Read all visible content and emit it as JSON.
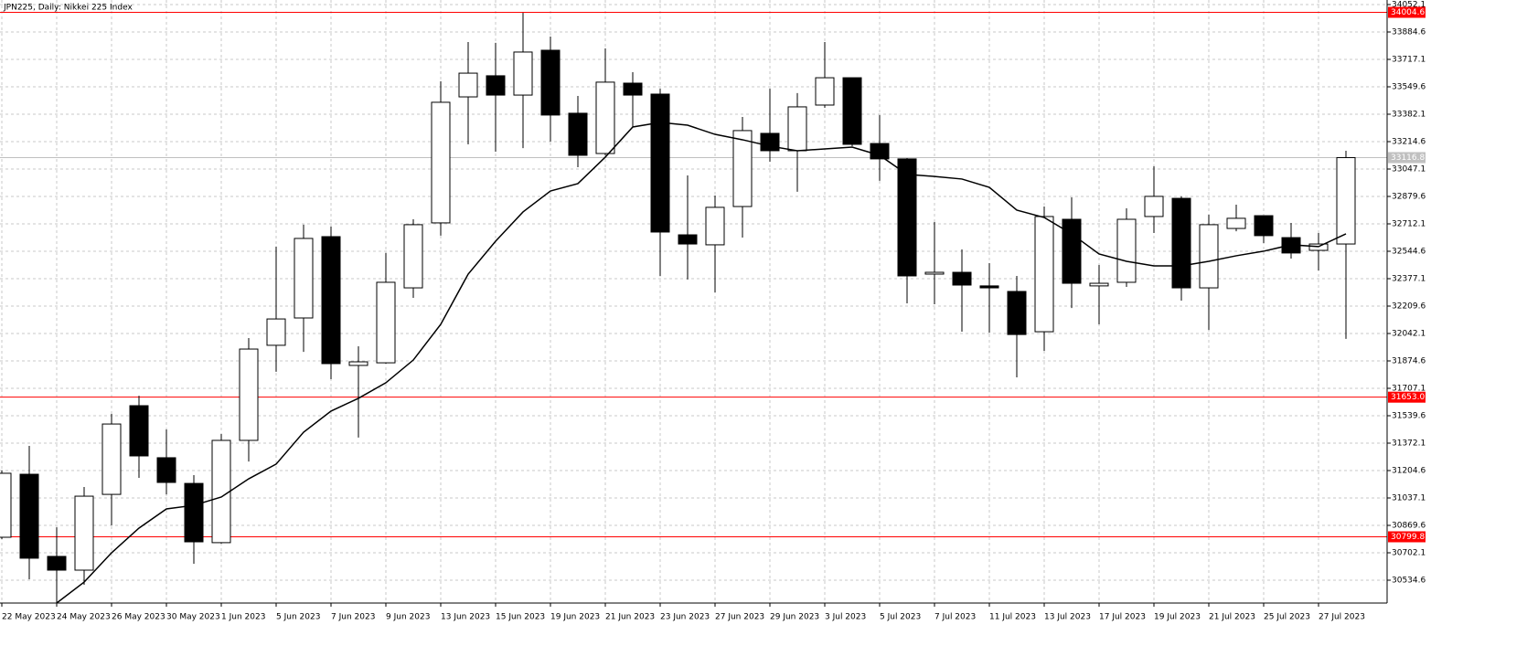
{
  "chart_data": {
    "type": "candlestick",
    "title": "JPN225, Daily:  Nikkei 225 Index",
    "categories": [
      "22 May 2023",
      null,
      "24 May 2023",
      null,
      "26 May 2023",
      null,
      "30 May 2023",
      null,
      "1 Jun 2023",
      null,
      "5 Jun 2023",
      null,
      "7 Jun 2023",
      null,
      "9 Jun 2023",
      null,
      "13 Jun 2023",
      null,
      "15 Jun 2023",
      null,
      "19 Jun 2023",
      null,
      "21 Jun 2023",
      null,
      "23 Jun 2023",
      null,
      "27 Jun 2023",
      null,
      "29 Jun 2023",
      null,
      "3 Jul 2023",
      null,
      "5 Jul 2023",
      null,
      "7 Jul 2023",
      null,
      "11 Jul 2023",
      null,
      "13 Jul 2023",
      null,
      "17 Jul 2023",
      null,
      "19 Jul 2023",
      null,
      "21 Jul 2023",
      null,
      "25 Jul 2023",
      null,
      "27 Jul 2023",
      null
    ],
    "open": [
      30797,
      31182,
      30680,
      30596,
      31059,
      31601,
      31283,
      31126,
      30764,
      31389,
      31970,
      32137,
      32634,
      31847,
      31863,
      32321,
      32718,
      33488,
      33617,
      33499,
      33773,
      33388,
      33142,
      33572,
      33505,
      32645,
      32584,
      32818,
      33265,
      33159,
      33438,
      33605,
      33203,
      33109,
      32405,
      32416,
      32333,
      32299,
      32053,
      32740,
      32333,
      32355,
      32757,
      32868,
      32321,
      32684,
      32762,
      32628,
      32550,
      32589
    ],
    "high": [
      31205,
      31355,
      30858,
      31104,
      31551,
      31662,
      31456,
      31177,
      31428,
      32014,
      32573,
      32707,
      32695,
      31964,
      32534,
      32740,
      33583,
      33823,
      33818,
      34002,
      33857,
      33494,
      33784,
      33639,
      33538,
      33008,
      32885,
      33365,
      33538,
      33511,
      33823,
      33605,
      33377,
      33114,
      32723,
      32556,
      32472,
      32394,
      32818,
      32874,
      32461,
      32807,
      33064,
      32880,
      32768,
      32829,
      32762,
      32718,
      32656,
      33159
    ],
    "low": [
      30786,
      30540,
      30395,
      30507,
      30870,
      31160,
      31059,
      30635,
      30758,
      31260,
      31808,
      31930,
      31763,
      31406,
      31858,
      32260,
      32640,
      33198,
      33153,
      33175,
      33215,
      33058,
      33131,
      33304,
      32394,
      32372,
      32293,
      32628,
      33092,
      32908,
      33421,
      33187,
      32975,
      32226,
      32221,
      32053,
      32048,
      31774,
      31936,
      32198,
      32098,
      32327,
      32656,
      32243,
      32064,
      32667,
      32595,
      32500,
      32427,
      32009
    ],
    "close": [
      31188,
      30669,
      30596,
      31048,
      31489,
      31294,
      31132,
      30769,
      31389,
      31947,
      32131,
      32623,
      31858,
      31869,
      32355,
      32707,
      33455,
      33633,
      33499,
      33762,
      33377,
      33131,
      33578,
      33499,
      32662,
      32589,
      32813,
      33282,
      33159,
      33427,
      33605,
      33198,
      33109,
      32394,
      32416,
      32338,
      32321,
      32036,
      32757,
      32349,
      32349,
      32740,
      32880,
      32321,
      32707,
      32746,
      32640,
      32534,
      32589,
      33116.8
    ],
    "up_color": "#ffffff",
    "down_color": "#000000",
    "wick_color": "#000000",
    "ma": {
      "color": "#000000",
      "values": [
        null,
        null,
        30395,
        30523,
        30702,
        30853,
        30970,
        30992,
        31043,
        31154,
        31244,
        31439,
        31568,
        31646,
        31741,
        31880,
        32098,
        32405,
        32606,
        32785,
        32913,
        32958,
        33120,
        33304,
        33332,
        33315,
        33259,
        33226,
        33187,
        33159,
        33170,
        33181,
        33131,
        33014,
        33002,
        32986,
        32935,
        32796,
        32751,
        32651,
        32528,
        32483,
        32455,
        32455,
        32483,
        32517,
        32545,
        32584,
        32573,
        32651
      ]
    },
    "levels": [
      34004.6,
      {
        "value": 31653,
        "label": "31653.0"
      },
      30799.8
    ],
    "level_color": "#ff0000",
    "last_price": 33116.8,
    "last_price_color": "#c0c0c0",
    "ylim": [
      30395,
      34080
    ],
    "yticks": [
      34052.1,
      33884.6,
      33717.1,
      33549.6,
      33382.1,
      33214.6,
      33047.1,
      32879.6,
      32712.1,
      32544.6,
      32377.1,
      32209.6,
      32042.1,
      31874.6,
      31707.1,
      31539.6,
      31372.1,
      31204.6,
      31037.1,
      30869.6,
      30702.1,
      30534.6
    ],
    "grid": true
  }
}
